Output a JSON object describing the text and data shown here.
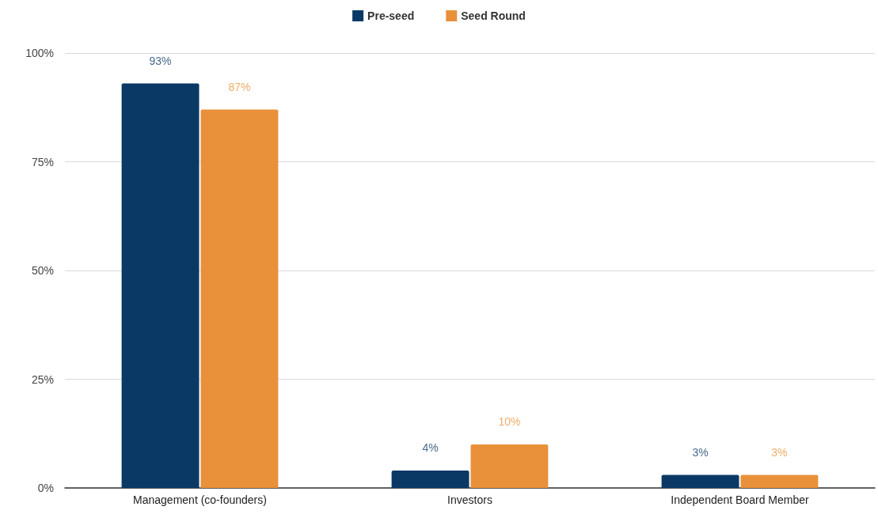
{
  "chart_data": {
    "type": "bar",
    "categories": [
      "Management (co-founders)",
      "Investors",
      "Independent Board Member"
    ],
    "series": [
      {
        "name": "Pre-seed",
        "color": "#0b3966",
        "values": [
          93,
          4,
          3
        ],
        "value_labels": [
          "93%",
          "4%",
          "3%"
        ]
      },
      {
        "name": "Seed Round",
        "color": "#e8913a",
        "values": [
          87,
          10,
          3
        ],
        "value_labels": [
          "87%",
          "10%",
          "3%"
        ]
      }
    ],
    "ylim": [
      0,
      100
    ],
    "yticks": [
      {
        "value": 0,
        "label": "0%"
      },
      {
        "value": 25,
        "label": "25%"
      },
      {
        "value": 50,
        "label": "50%"
      },
      {
        "value": 75,
        "label": "75%"
      },
      {
        "value": 100,
        "label": "100%"
      }
    ],
    "grid": "y",
    "legend": "top"
  }
}
